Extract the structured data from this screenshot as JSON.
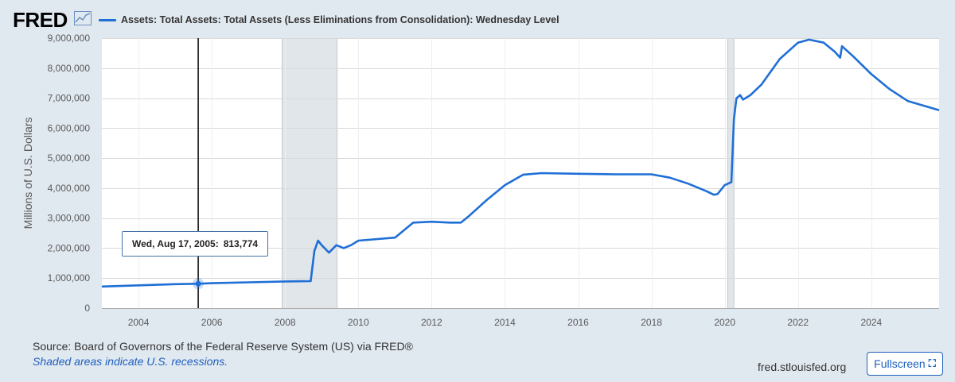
{
  "brand": {
    "logo_text": "FRED",
    "logo_icon": "trend-line-icon"
  },
  "colors": {
    "series": "#1f6fd6",
    "recession": "#e1e6ea",
    "plot_bg": "#ffffff",
    "frame_bg": "#e1e9f0",
    "grid": "#d9d9d9",
    "crosshair": "#000000"
  },
  "chart_data": {
    "type": "line",
    "title": "Assets: Total Assets: Total Assets (Less Eliminations from Consolidation): Wednesday Level",
    "xlabel": "",
    "ylabel": "Millions of U.S. Dollars",
    "xlim": [
      2003.0,
      2025.85
    ],
    "ylim": [
      0,
      9000000
    ],
    "grid": true,
    "legend": "top-left",
    "x_ticks": [
      {
        "value": 2004,
        "label": "2004"
      },
      {
        "value": 2006,
        "label": "2006"
      },
      {
        "value": 2008,
        "label": "2008"
      },
      {
        "value": 2010,
        "label": "2010"
      },
      {
        "value": 2012,
        "label": "2012"
      },
      {
        "value": 2014,
        "label": "2014"
      },
      {
        "value": 2016,
        "label": "2016"
      },
      {
        "value": 2018,
        "label": "2018"
      },
      {
        "value": 2020,
        "label": "2020"
      },
      {
        "value": 2022,
        "label": "2022"
      },
      {
        "value": 2024,
        "label": "2024"
      }
    ],
    "y_ticks": [
      {
        "value": 0,
        "label": "0"
      },
      {
        "value": 1000000,
        "label": "1,000,000"
      },
      {
        "value": 2000000,
        "label": "2,000,000"
      },
      {
        "value": 3000000,
        "label": "3,000,000"
      },
      {
        "value": 4000000,
        "label": "4,000,000"
      },
      {
        "value": 5000000,
        "label": "5,000,000"
      },
      {
        "value": 6000000,
        "label": "6,000,000"
      },
      {
        "value": 7000000,
        "label": "7,000,000"
      },
      {
        "value": 8000000,
        "label": "8,000,000"
      },
      {
        "value": 9000000,
        "label": "9,000,000"
      }
    ],
    "recessions": [
      {
        "start": 2007.92,
        "end": 2009.42
      },
      {
        "start": 2020.08,
        "end": 2020.25
      }
    ],
    "series": [
      {
        "name": "Assets: Total Assets: Total Assets (Less Eliminations from Consolidation): Wednesday Level",
        "x": [
          2003.0,
          2004.0,
          2005.0,
          2005.63,
          2006.0,
          2007.0,
          2008.0,
          2008.7,
          2008.8,
          2008.9,
          2009.0,
          2009.2,
          2009.4,
          2009.6,
          2009.8,
          2010.0,
          2011.0,
          2011.5,
          2012.0,
          2012.5,
          2012.8,
          2013.0,
          2013.5,
          2014.0,
          2014.5,
          2015.0,
          2016.0,
          2017.0,
          2018.0,
          2018.5,
          2019.0,
          2019.5,
          2019.7,
          2019.8,
          2020.0,
          2020.18,
          2020.25,
          2020.32,
          2020.42,
          2020.5,
          2020.7,
          2021.0,
          2021.5,
          2022.0,
          2022.3,
          2022.7,
          2023.0,
          2023.15,
          2023.2,
          2023.5,
          2024.0,
          2024.5,
          2025.0,
          2025.85
        ],
        "y": [
          720000,
          760000,
          800000,
          813774,
          830000,
          860000,
          890000,
          900000,
          1900000,
          2250000,
          2100000,
          1850000,
          2100000,
          2000000,
          2100000,
          2250000,
          2350000,
          2850000,
          2880000,
          2850000,
          2850000,
          3050000,
          3600000,
          4100000,
          4450000,
          4500000,
          4480000,
          4460000,
          4460000,
          4350000,
          4150000,
          3900000,
          3780000,
          3800000,
          4100000,
          4200000,
          6300000,
          7000000,
          7100000,
          6950000,
          7100000,
          7450000,
          8300000,
          8850000,
          8950000,
          8850000,
          8550000,
          8350000,
          8730000,
          8400000,
          7800000,
          7300000,
          6900000,
          6600000
        ]
      }
    ],
    "tooltip": {
      "x": 2005.63,
      "y": 813774,
      "date_label": "Wed, Aug 17, 2005:",
      "value_label": "813,774"
    }
  },
  "footer": {
    "source": "Source: Board of Governors of the Federal Reserve System (US) via FRED®",
    "shaded_note": "Shaded areas indicate U.S. recessions.",
    "site": "fred.stlouisfed.org",
    "fullscreen_label": "Fullscreen",
    "fullscreen_icon": "expand-icon"
  }
}
